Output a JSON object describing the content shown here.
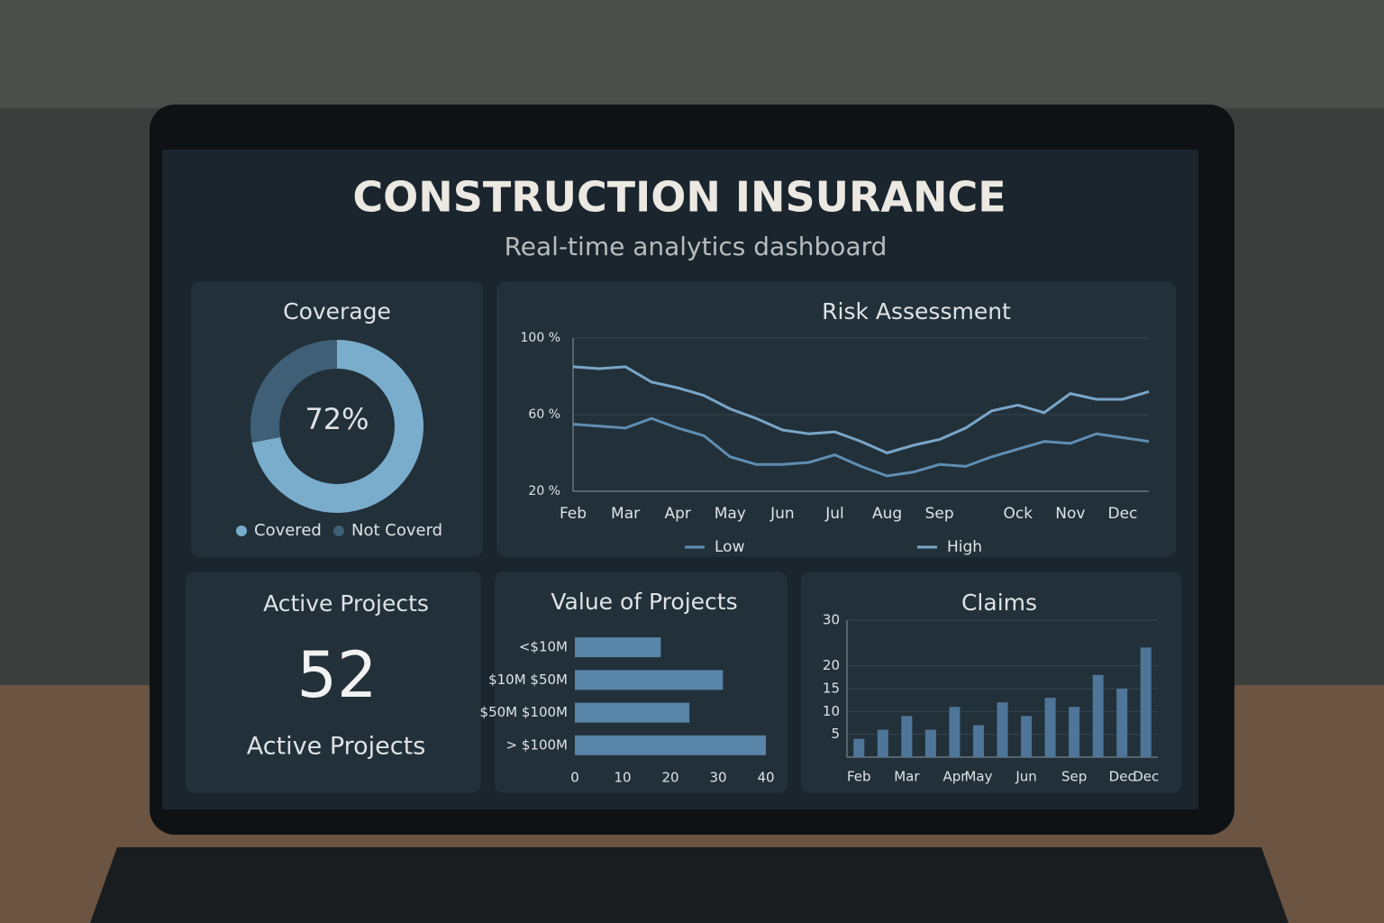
{
  "header": {
    "title": "CONSTRUCTION INSURANCE",
    "subtitle": "Real-time analytics dashboard"
  },
  "kpi": {
    "title": "Active Projects",
    "value": 52,
    "caption": "Active Projects"
  },
  "chart_data": [
    {
      "type": "pie",
      "title": "Coverage",
      "categories": [
        "Covered",
        "Not Coverd"
      ],
      "values": [
        72,
        28
      ],
      "value_labels": [
        "72%",
        null
      ],
      "colors": [
        "#7aaccc",
        "#3f5f77"
      ],
      "donut": true
    },
    {
      "type": "line",
      "title": "Risk Assessment",
      "categories": [
        "Feb",
        null,
        "Mar",
        null,
        "Apr",
        null,
        "May",
        null,
        "Jun",
        null,
        "Jul",
        null,
        "Aug",
        null,
        "Sep",
        null,
        null,
        "Ock",
        null,
        "Nov",
        null,
        "Dec",
        null
      ],
      "series": [
        {
          "name": "Low",
          "color": "#5f8db2",
          "values": [
            55,
            54,
            53,
            58,
            53,
            49,
            38,
            34,
            34,
            35,
            39,
            33,
            28,
            30,
            34,
            33,
            38,
            42,
            46,
            45,
            50,
            48,
            46
          ]
        },
        {
          "name": "High",
          "color": "#7aa6c8",
          "values": [
            85,
            84,
            85,
            77,
            74,
            70,
            63,
            58,
            52,
            50,
            51,
            46,
            40,
            44,
            47,
            53,
            62,
            65,
            61,
            71,
            68,
            68,
            72
          ]
        }
      ],
      "ylim": [
        20,
        100
      ],
      "yticks": [
        {
          "value": 100,
          "label": "100 %"
        },
        {
          "value": 60,
          "label": "60 %"
        },
        {
          "value": 20,
          "label": "20 %"
        }
      ],
      "grid": true,
      "legend": "bottom"
    },
    {
      "type": "bar",
      "orientation": "horizontal",
      "title": "Value of Projects",
      "categories": [
        "<$10M",
        "$10M $50M",
        "$50M $100M",
        "> $100M"
      ],
      "values": [
        18,
        31,
        24,
        40
      ],
      "color": "#5885a8",
      "xlim": [
        0,
        40
      ],
      "xticks": [
        0,
        10,
        20,
        30,
        40
      ]
    },
    {
      "type": "bar",
      "title": "Claims",
      "categories": [
        "Feb",
        null,
        "Mar",
        null,
        "Apr",
        "May",
        null,
        "Jun",
        null,
        "Sep",
        null,
        "Dec",
        "Dec"
      ],
      "values": [
        4,
        6,
        9,
        6,
        11,
        7,
        12,
        9,
        13,
        11,
        18,
        15,
        24
      ],
      "color": "#4f7698",
      "ylim": [
        0,
        30
      ],
      "yticks": [
        5,
        10,
        15,
        20,
        30
      ],
      "grid": true
    }
  ]
}
